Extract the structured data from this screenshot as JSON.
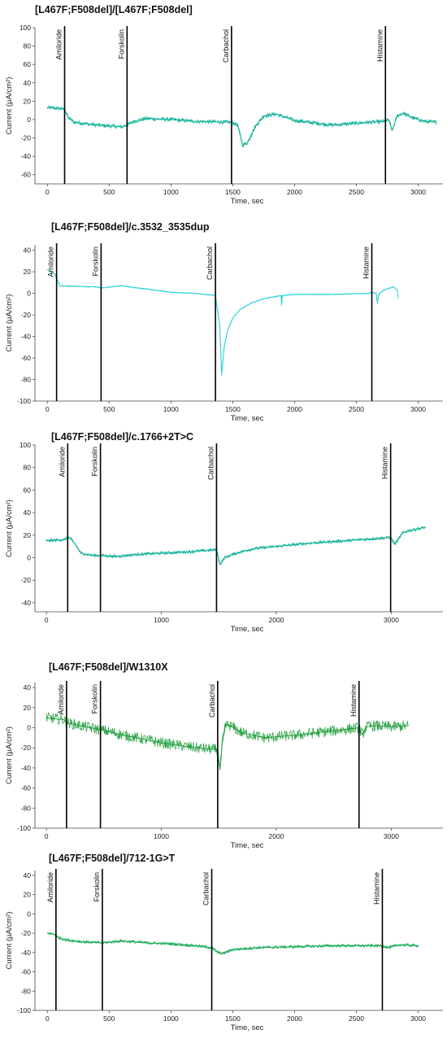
{
  "chart_data": [
    {
      "type": "line",
      "title": "[L467F;F508del]/[L467F;F508del]",
      "xlabel": "Time, sec",
      "ylabel": "Current (µA/cm²)",
      "xlim": [
        -100,
        3200
      ],
      "ylim": [
        -70,
        100
      ],
      "xticks": [
        0,
        500,
        1000,
        1500,
        2000,
        2500,
        3000
      ],
      "yticks": [
        -60,
        -40,
        -20,
        0,
        20,
        40,
        60,
        80,
        100
      ],
      "color": "#18b59c",
      "noise": 2.2,
      "events": [
        {
          "name": "Amiloride",
          "x": 140
        },
        {
          "name": "Forskolin",
          "x": 645
        },
        {
          "name": "Carbachol",
          "x": 1490
        },
        {
          "name": "Histamine",
          "x": 2735
        }
      ],
      "series": [
        {
          "x": [
            0,
            100,
            140,
            170,
            220,
            400,
            600,
            645,
            700,
            800,
            1000,
            1200,
            1490,
            1540,
            1580,
            1620,
            1680,
            1750,
            1850,
            2000,
            2300,
            2600,
            2735,
            2760,
            2790,
            2830,
            2880,
            2950,
            3050,
            3150
          ],
          "y": [
            13,
            12,
            11,
            2,
            -3,
            -6,
            -8,
            -6,
            -2,
            1,
            0,
            -2,
            -3,
            -6,
            -28,
            -25,
            -8,
            4,
            6,
            -1,
            -6,
            -3,
            -2,
            0,
            -12,
            4,
            7,
            2,
            -2,
            -3
          ]
        }
      ]
    },
    {
      "type": "line",
      "title": "[L467F;F508del]/c.3532_3535dup",
      "xlabel": "Time, sec",
      "ylabel": "Current (µA/cm²)",
      "xlim": [
        -100,
        3200
      ],
      "ylim": [
        -100,
        45
      ],
      "xticks": [
        0,
        500,
        1000,
        1500,
        2000,
        2500,
        3000
      ],
      "yticks": [
        -100,
        -80,
        -60,
        -40,
        -20,
        0,
        20,
        40
      ],
      "color": "#2fd4d8",
      "noise": 0.4,
      "events": [
        {
          "name": "Amiloride",
          "x": 75
        },
        {
          "name": "Forskolin",
          "x": 435
        },
        {
          "name": "Carbachol",
          "x": 1360
        },
        {
          "name": "Histamine",
          "x": 2625
        }
      ],
      "series": [
        {
          "x": [
            0,
            60,
            75,
            100,
            400,
            435,
            600,
            800,
            1000,
            1200,
            1360,
            1395,
            1410,
            1430,
            1460,
            1500,
            1560,
            1650,
            1750,
            1890,
            1895,
            1900,
            2000,
            2300,
            2600,
            2625,
            2660,
            2670,
            2680,
            2720,
            2800,
            2830,
            2840
          ],
          "y": [
            22,
            18,
            14,
            7,
            6,
            5,
            7,
            4,
            1,
            0,
            -2,
            -30,
            -76,
            -50,
            -34,
            -23,
            -15,
            -9,
            -5,
            -2,
            -11,
            -2,
            -1,
            -1,
            0,
            1,
            0,
            -9,
            -1,
            3,
            6,
            3,
            -5
          ]
        }
      ]
    },
    {
      "type": "line",
      "title": "[L467F;F508del]/c.1766+2T>C",
      "xlabel": "Time, sec",
      "ylabel": "Current (µA/cm²)",
      "xlim": [
        -100,
        3450
      ],
      "ylim": [
        -48,
        100
      ],
      "xticks": [
        0,
        1000,
        2000,
        3000
      ],
      "yticks": [
        -40,
        -20,
        0,
        20,
        40,
        60,
        80,
        100
      ],
      "color": "#18b59c",
      "noise": 1.4,
      "events": [
        {
          "name": "Amiloride",
          "x": 185
        },
        {
          "name": "Forskolin",
          "x": 470
        },
        {
          "name": "Carbachol",
          "x": 1480
        },
        {
          "name": "Histamine",
          "x": 2995
        }
      ],
      "series": [
        {
          "x": [
            0,
            150,
            200,
            250,
            300,
            400,
            470,
            600,
            800,
            1000,
            1200,
            1480,
            1510,
            1550,
            1650,
            1800,
            2000,
            2300,
            2600,
            2995,
            3030,
            3060,
            3100,
            3150,
            3250,
            3300
          ],
          "y": [
            15,
            16,
            18,
            12,
            4,
            2,
            2,
            1,
            3,
            4,
            5,
            7,
            -6,
            0,
            4,
            8,
            10,
            13,
            15,
            18,
            12,
            16,
            22,
            24,
            26,
            27
          ]
        }
      ]
    },
    {
      "type": "line",
      "title": "[L467F;F508del]/W1310X",
      "xlabel": "Time, sec",
      "ylabel": "Current (µA/cm²)",
      "xlim": [
        -100,
        3450
      ],
      "ylim": [
        -100,
        45
      ],
      "xticks": [
        0,
        1000,
        2000,
        3000
      ],
      "yticks": [
        -100,
        -80,
        -60,
        -40,
        -20,
        0,
        20,
        40
      ],
      "color": "#1f9e3c",
      "noise": 5.5,
      "events": [
        {
          "name": "Amiloride",
          "x": 175
        },
        {
          "name": "Forskolin",
          "x": 470
        },
        {
          "name": "Carbachol",
          "x": 1490
        },
        {
          "name": "Histamine",
          "x": 2720
        }
      ],
      "series": [
        {
          "x": [
            0,
            150,
            175,
            300,
            470,
            700,
            1000,
            1300,
            1490,
            1510,
            1530,
            1560,
            1600,
            1700,
            1900,
            2200,
            2500,
            2720,
            2750,
            2780,
            2850,
            3000,
            3150
          ],
          "y": [
            10,
            8,
            5,
            2,
            -2,
            -8,
            -15,
            -20,
            -22,
            -42,
            -15,
            3,
            2,
            -5,
            -10,
            -7,
            -3,
            0,
            -7,
            1,
            2,
            1,
            2
          ]
        }
      ]
    },
    {
      "type": "line",
      "title": "[L467F;F508del]/712-1G>T",
      "xlabel": "Time, sec",
      "ylabel": "Current (µA/cm²)",
      "xlim": [
        -100,
        3200
      ],
      "ylim": [
        -100,
        45
      ],
      "xticks": [
        0,
        500,
        1000,
        1500,
        2000,
        2500,
        3000
      ],
      "yticks": [
        -100,
        -80,
        -60,
        -40,
        -20,
        0,
        20,
        40
      ],
      "color": "#1fae5e",
      "noise": 1.5,
      "events": [
        {
          "name": "Amiloride",
          "x": 70
        },
        {
          "name": "Forskolin",
          "x": 445
        },
        {
          "name": "Carbachol",
          "x": 1330
        },
        {
          "name": "Histamine",
          "x": 2710
        }
      ],
      "series": [
        {
          "x": [
            0,
            60,
            80,
            150,
            300,
            445,
            600,
            800,
            1000,
            1200,
            1330,
            1380,
            1420,
            1500,
            1700,
            2000,
            2300,
            2600,
            2710,
            2760,
            2850,
            3000
          ],
          "y": [
            -20,
            -21,
            -24,
            -27,
            -29,
            -30,
            -28,
            -30,
            -31,
            -33,
            -35,
            -40,
            -41,
            -37,
            -35,
            -34,
            -33,
            -33,
            -33,
            -35,
            -32,
            -33
          ]
        }
      ]
    }
  ]
}
